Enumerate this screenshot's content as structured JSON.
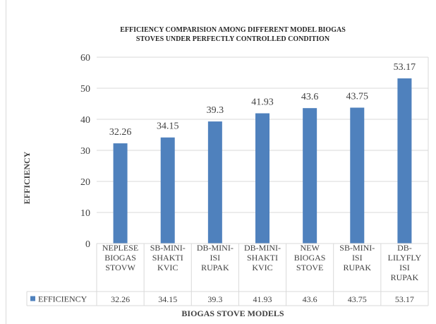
{
  "chart_data": {
    "type": "bar",
    "title_lines": [
      "EFFICIENCY COMPARISION AMONG DIFFERENT MODEL BIOGAS",
      "STOVES UNDER PERFECTLY CONTROLLED CONDITION"
    ],
    "xlabel": "BIOGAS STOVE MODELS",
    "ylabel": "EFFICIENCY",
    "ylim": [
      0,
      60
    ],
    "yticks": [
      "0",
      "10",
      "20",
      "30",
      "40",
      "50",
      "60"
    ],
    "categories": [
      [
        "NEPLESE",
        "BIOGAS",
        "STOVW"
      ],
      [
        "SB-MINI-",
        "SHAKTI",
        "KVIC"
      ],
      [
        "DB-MINI-",
        "ISI",
        "RUPAK"
      ],
      [
        "DB-MINI-",
        "SHAKTI",
        "KVIC"
      ],
      [
        "NEW",
        "BIOGAS",
        "STOVE"
      ],
      [
        "SB-MINI-",
        "ISI",
        "RUPAK"
      ],
      [
        "DB-",
        "LILYFLY",
        "ISI",
        "RUPAK"
      ]
    ],
    "series": [
      {
        "name": "EFFICIENCY",
        "values": [
          32.26,
          34.15,
          39.3,
          41.93,
          43.6,
          43.75,
          53.17
        ],
        "labels": [
          "32.26",
          "34.15",
          "39.3",
          "41.93",
          "43.6",
          "43.75",
          "53.17"
        ]
      }
    ],
    "data_table": true,
    "legend": "data-table",
    "colors": {
      "bar": "#4f81bd",
      "grid": "#d9d9d9",
      "text": "#404040",
      "title": "#262626"
    }
  }
}
